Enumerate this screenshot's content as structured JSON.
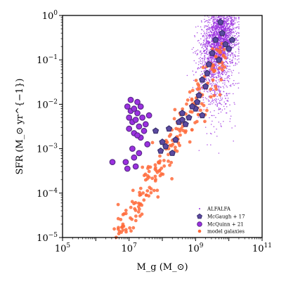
{
  "chart_data": {
    "type": "scatter",
    "xlabel": "M_g (M_⊙)",
    "ylabel": "SFR (M_⊙ yr^{−1})",
    "x_scale": "log",
    "y_scale": "log",
    "xlim": [
      100000,
      100000000000
    ],
    "ylim": [
      1e-05,
      1
    ],
    "x_ticks": [
      {
        "base": "10",
        "exp": "5",
        "value": 100000
      },
      {
        "base": "10",
        "exp": "7",
        "value": 10000000
      },
      {
        "base": "10",
        "exp": "9",
        "value": 1000000000
      },
      {
        "base": "10",
        "exp": "11",
        "value": 100000000000
      }
    ],
    "y_ticks": [
      {
        "base": "10",
        "exp": "0",
        "value": 1
      },
      {
        "base": "10",
        "exp": "−1",
        "value": 0.1
      },
      {
        "base": "10",
        "exp": "−2",
        "value": 0.01
      },
      {
        "base": "10",
        "exp": "−3",
        "value": 0.001
      },
      {
        "base": "10",
        "exp": "−4",
        "value": 0.0001
      },
      {
        "base": "10",
        "exp": "−5",
        "value": 1e-05
      }
    ],
    "grid": false,
    "legend_position": "bottom-right",
    "series": [
      {
        "name": "ALFALFA",
        "marker": "dot",
        "color": "#9b30e0",
        "log_mass_range": [
          8.9,
          10.3
        ],
        "log_sfr_range": [
          -2.8,
          0.0
        ],
        "representative_points": [
          [
            9.5,
            -0.6
          ],
          [
            9.7,
            -0.3
          ],
          [
            9.9,
            -0.2
          ],
          [
            9.6,
            -0.9
          ],
          [
            9.3,
            -1.2
          ],
          [
            9.8,
            -1.5
          ],
          [
            9.4,
            -2.0
          ],
          [
            9.6,
            -2.5
          ],
          [
            10.0,
            -1.0
          ],
          [
            9.2,
            -0.5
          ]
        ]
      },
      {
        "name": "McGaugh + 17",
        "marker": "pentagon",
        "color": "#5b4aa0",
        "edge_color": "#3a2f6e",
        "points": [
          [
            9.6,
            -0.55
          ],
          [
            9.8,
            -0.4
          ],
          [
            9.9,
            -0.65
          ],
          [
            9.5,
            -0.85
          ],
          [
            9.4,
            -1.1
          ],
          [
            10.0,
            -0.75
          ],
          [
            9.7,
            -1.0
          ],
          [
            9.3,
            -1.6
          ],
          [
            9.1,
            -1.8
          ],
          [
            9.0,
            -2.1
          ],
          [
            8.7,
            -2.45
          ],
          [
            8.5,
            -2.4
          ],
          [
            8.2,
            -2.55
          ],
          [
            8.4,
            -2.8
          ],
          [
            8.0,
            -2.85
          ],
          [
            8.1,
            -2.95
          ],
          [
            7.8,
            -2.6
          ],
          [
            8.6,
            -2.2
          ],
          [
            8.9,
            -2.05
          ],
          [
            9.2,
            -1.45
          ],
          [
            8.8,
            -2.3
          ],
          [
            8.3,
            -3.1
          ],
          [
            7.95,
            -3.05
          ],
          [
            9.05,
            -1.95
          ],
          [
            9.35,
            -1.3
          ],
          [
            10.1,
            -0.55
          ],
          [
            9.75,
            -0.15
          ],
          [
            9.2,
            -2.25
          ],
          [
            8.6,
            -2.35
          ]
        ]
      },
      {
        "name": "McQuinn + 21",
        "marker": "circle",
        "color": "#9b30e0",
        "edge_color": "#5a2a8a",
        "points": [
          [
            6.95,
            -2.05
          ],
          [
            7.05,
            -2.15
          ],
          [
            7.15,
            -2.1
          ],
          [
            7.25,
            -2.2
          ],
          [
            7.0,
            -2.3
          ],
          [
            7.1,
            -2.4
          ],
          [
            7.2,
            -2.35
          ],
          [
            7.3,
            -2.5
          ],
          [
            7.4,
            -2.3
          ],
          [
            7.35,
            -2.05
          ],
          [
            7.25,
            -1.95
          ],
          [
            7.15,
            -2.65
          ],
          [
            7.35,
            -2.75
          ],
          [
            7.45,
            -2.6
          ],
          [
            7.1,
            -3.0
          ],
          [
            7.3,
            -3.1
          ],
          [
            7.15,
            -3.2
          ],
          [
            7.55,
            -2.9
          ],
          [
            6.9,
            -3.3
          ],
          [
            6.5,
            -3.3
          ],
          [
            6.95,
            -3.45
          ],
          [
            7.2,
            -3.4
          ],
          [
            7.05,
            -1.9
          ],
          [
            7.5,
            -2.45
          ],
          [
            7.6,
            -2.25
          ],
          [
            7.0,
            -2.55
          ],
          [
            7.25,
            -2.7
          ]
        ]
      },
      {
        "name": "model galaxies",
        "marker": "circle",
        "color": "#ff6a3a",
        "trend": {
          "log_mass_start": 6.6,
          "log_sfr_start": -5.1,
          "slope": 1.3
        },
        "log_mass_range": [
          6.4,
          9.9
        ],
        "representative_points": [
          [
            6.6,
            -4.9
          ],
          [
            6.8,
            -4.6
          ],
          [
            7.0,
            -4.3
          ],
          [
            7.2,
            -3.95
          ],
          [
            7.4,
            -3.7
          ],
          [
            7.6,
            -3.4
          ],
          [
            7.8,
            -3.1
          ],
          [
            8.0,
            -2.8
          ],
          [
            8.3,
            -2.45
          ],
          [
            8.6,
            -2.1
          ],
          [
            8.9,
            -1.75
          ],
          [
            9.2,
            -1.35
          ],
          [
            9.5,
            -1.0
          ],
          [
            9.8,
            -0.6
          ]
        ]
      }
    ]
  }
}
